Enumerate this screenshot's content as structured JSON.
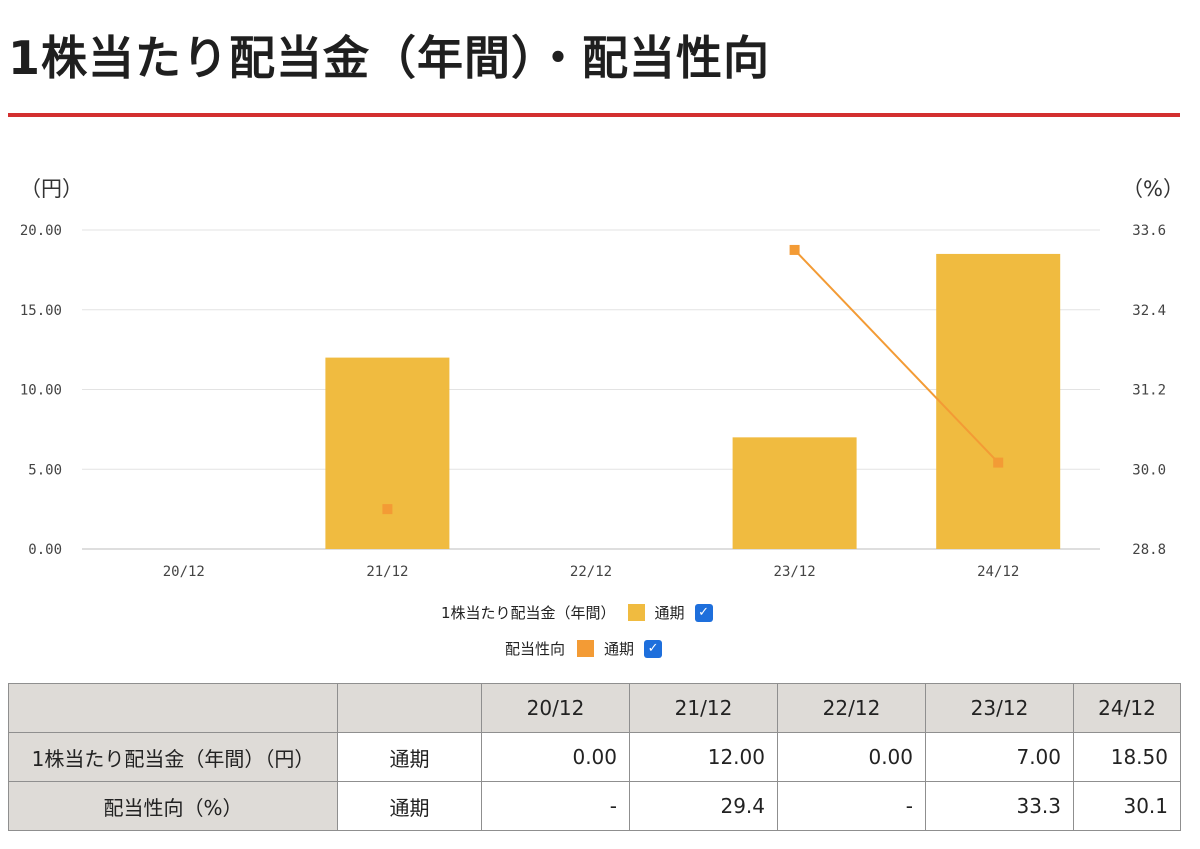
{
  "page": {
    "title": "1株当たり配当金（年間）・配当性向"
  },
  "chart_data": {
    "type": "bar",
    "left_unit": "（円）",
    "right_unit": "（%）",
    "categories": [
      "20/12",
      "21/12",
      "22/12",
      "23/12",
      "24/12"
    ],
    "left_axis": {
      "ylim": [
        0,
        20
      ],
      "ticks": [
        "0.00",
        "5.00",
        "10.00",
        "15.00",
        "20.00"
      ]
    },
    "right_axis": {
      "ylim": [
        28.8,
        33.6
      ],
      "ticks": [
        "28.8",
        "30.0",
        "31.2",
        "32.4",
        "33.6"
      ]
    },
    "series": [
      {
        "name": "1株当たり配当金（年間）",
        "type": "bar",
        "axis": "left",
        "sub": "通期",
        "color": "#f0bb40",
        "values": [
          0.0,
          12.0,
          0.0,
          7.0,
          18.5
        ]
      },
      {
        "name": "配当性向",
        "type": "line",
        "axis": "right",
        "sub": "通期",
        "color": "#f39b35",
        "values": [
          null,
          29.4,
          null,
          33.3,
          30.1
        ]
      }
    ],
    "grid": true,
    "legend_position": "bottom-center"
  },
  "legend": [
    {
      "label": "1株当たり配当金（年間）",
      "sub": "通期",
      "color": "#f0bb40",
      "checked": "✓"
    },
    {
      "label": "配当性向",
      "sub": "通期",
      "color": "#f39b35",
      "checked": "✓"
    }
  ],
  "table": {
    "header": [
      "",
      "",
      "20/12",
      "21/12",
      "22/12",
      "23/12",
      "24/12"
    ],
    "rows": [
      {
        "label": "1株当たり配当金（年間）（円）",
        "period": "通期",
        "values": [
          "0.00",
          "12.00",
          "0.00",
          "7.00",
          "18.50"
        ]
      },
      {
        "label": "配当性向（%）",
        "period": "通期",
        "values": [
          "-",
          "29.4",
          "-",
          "33.3",
          "30.1"
        ]
      }
    ]
  }
}
